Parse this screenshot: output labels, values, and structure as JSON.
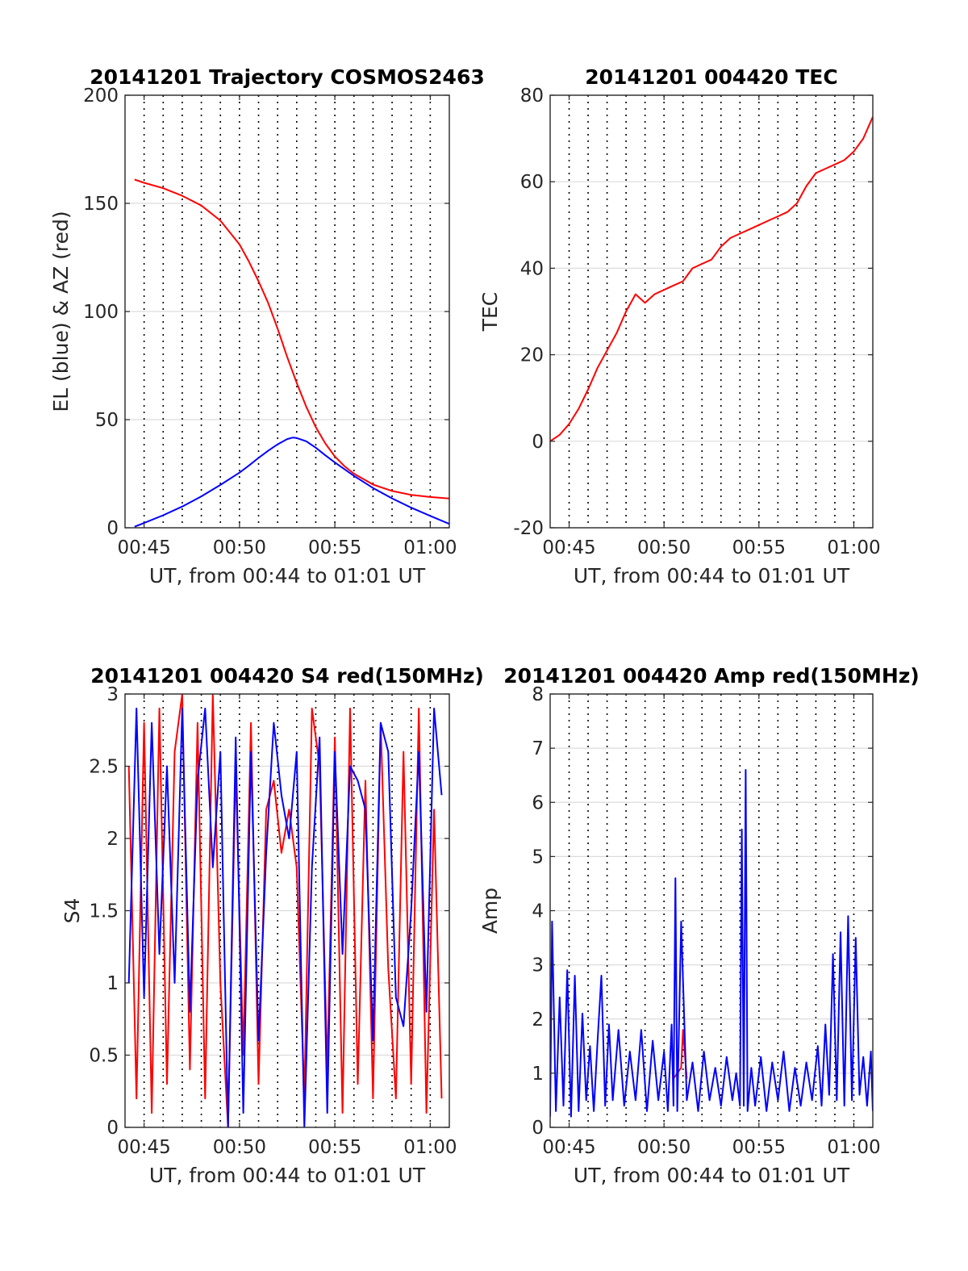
{
  "figure": {
    "background": "#ffffff"
  },
  "chart_data": [
    {
      "id": "trajectory",
      "type": "line",
      "title": "20141201 Trajectory COSMOS2463",
      "xlabel": "UT, from 00:44 to 01:01 UT",
      "ylabel": "EL (blue) & AZ (red)",
      "xlim": [
        "00:44",
        "01:01"
      ],
      "ylim": [
        0,
        200
      ],
      "yticks": [
        0,
        50,
        100,
        150,
        200
      ],
      "xticks": [
        "00:45",
        "00:50",
        "00:55",
        "01:00"
      ],
      "vgrid_dotted": true,
      "hgrid": true,
      "series": [
        {
          "color": "#ff0000",
          "x": [
            "00:44.5",
            "00:45",
            "00:46",
            "00:47",
            "00:48",
            "00:49",
            "00:50",
            "00:50.5",
            "00:51",
            "00:51.5",
            "00:52",
            "00:52.5",
            "00:53",
            "00:53.5",
            "00:54",
            "00:54.5",
            "00:55",
            "00:55.5",
            "00:56",
            "00:57",
            "00:58",
            "00:59",
            "01:00",
            "01:01"
          ],
          "values": [
            161,
            159.5,
            157,
            153.5,
            149,
            142,
            131,
            123,
            114,
            104,
            92,
            79,
            67,
            56,
            46.5,
            39,
            33,
            28.5,
            25,
            20,
            17,
            15.2,
            14.2,
            13.5
          ]
        },
        {
          "color": "#0000ff",
          "x": [
            "00:44.5",
            "00:45",
            "00:46",
            "00:47",
            "00:48",
            "00:49",
            "00:50",
            "00:50.5",
            "00:51",
            "00:51.5",
            "00:52",
            "00:52.5",
            "00:52.8",
            "00:53",
            "00:53.5",
            "00:54",
            "00:54.5",
            "00:55",
            "00:56",
            "00:57",
            "00:58",
            "00:59",
            "01:00",
            "01:01"
          ],
          "values": [
            0.5,
            2.2,
            5.8,
            9.8,
            14.5,
            19.8,
            25.5,
            28.8,
            32.3,
            35.6,
            38.6,
            41,
            41.7,
            41.5,
            40,
            37,
            33.5,
            30.2,
            24,
            18.4,
            13.6,
            9.3,
            5.5,
            1.8
          ]
        }
      ]
    },
    {
      "id": "tec",
      "type": "line",
      "title": "20141201 004420 TEC",
      "xlabel": "UT, from 00:44 to 01:01 UT",
      "ylabel": "TEC",
      "xlim": [
        "00:44",
        "01:01"
      ],
      "ylim": [
        -20,
        80
      ],
      "yticks": [
        -20,
        0,
        20,
        40,
        60,
        80
      ],
      "xticks": [
        "00:45",
        "00:50",
        "00:55",
        "01:00"
      ],
      "vgrid_dotted": true,
      "hgrid": true,
      "series": [
        {
          "color": "#ff0000",
          "x": [
            "00:44",
            "00:44.5",
            "00:45",
            "00:45.5",
            "00:46",
            "00:46.5",
            "00:47",
            "00:47.5",
            "00:48",
            "00:48.5",
            "00:49",
            "00:49.5",
            "00:50",
            "00:50.5",
            "00:51",
            "00:51.5",
            "00:52",
            "00:52.5",
            "00:53",
            "00:53.5",
            "00:54",
            "00:54.5",
            "00:55",
            "00:55.5",
            "00:56",
            "00:56.5",
            "00:57",
            "00:57.5",
            "00:58",
            "00:58.5",
            "00:59",
            "00:59.5",
            "01:00",
            "01:00.5",
            "01:01"
          ],
          "values": [
            0,
            1.5,
            4,
            7.5,
            12,
            17,
            21,
            25,
            30,
            34,
            32,
            34,
            35,
            36,
            37,
            40,
            41,
            42,
            45,
            47,
            48,
            49,
            50,
            51,
            52,
            53,
            55,
            59,
            62,
            63,
            64,
            65,
            67,
            70,
            75
          ]
        }
      ]
    },
    {
      "id": "s4",
      "type": "line",
      "title": "20141201 004420 S4 red(150MHz)",
      "xlabel": "UT, from 00:44 to 01:01 UT",
      "ylabel": "S4",
      "xlim": [
        "00:44",
        "01:01"
      ],
      "ylim": [
        0,
        3
      ],
      "yticks": [
        0,
        0.5,
        1,
        1.5,
        2,
        2.5,
        3
      ],
      "xticks": [
        "00:45",
        "00:50",
        "00:55",
        "01:00"
      ],
      "vgrid_dotted": true,
      "hgrid": true,
      "series": [
        {
          "color": "#ff0000",
          "x": [
            "00:44.2",
            "00:44.6",
            "00:45",
            "00:45.4",
            "00:45.8",
            "00:46.2",
            "00:46.6",
            "00:47",
            "00:47.4",
            "00:47.8",
            "00:48.2",
            "00:48.6",
            "00:49",
            "00:49.4",
            "00:49.8",
            "00:50.2",
            "00:50.6",
            "00:51",
            "00:51.4",
            "00:51.8",
            "00:52.2",
            "00:52.6",
            "00:53",
            "00:53.4",
            "00:53.8",
            "00:54.2",
            "00:54.6",
            "00:55",
            "00:55.4",
            "00:55.8",
            "00:56.2",
            "00:56.6",
            "00:57",
            "00:57.4",
            "00:57.8",
            "00:58.2",
            "00:58.6",
            "00:59",
            "00:59.4",
            "00:59.8",
            "01:00.2",
            "01:00.6"
          ],
          "values": [
            2.5,
            0.2,
            2.8,
            0.1,
            2.9,
            0.3,
            2.6,
            3,
            0.4,
            2.8,
            0.2,
            3,
            1,
            0,
            2.5,
            0.5,
            2.8,
            0.3,
            2.2,
            2.4,
            1.9,
            2.2,
            1.8,
            0.2,
            2.9,
            2.5,
            0.4,
            2.7,
            0.1,
            2.9,
            0.3,
            2.4,
            0.2,
            2.8,
            1.1,
            0.2,
            2.6,
            0.3,
            2.9,
            0.1,
            2.2,
            0.2
          ]
        },
        {
          "color": "#0000ff",
          "x": [
            "00:44.2",
            "00:44.6",
            "00:45",
            "00:45.4",
            "00:45.8",
            "00:46.2",
            "00:46.6",
            "00:47",
            "00:47.4",
            "00:47.8",
            "00:48.2",
            "00:48.6",
            "00:49",
            "00:49.4",
            "00:49.8",
            "00:50.2",
            "00:50.6",
            "00:51",
            "00:51.4",
            "00:51.8",
            "00:52.2",
            "00:52.6",
            "00:53",
            "00:53.4",
            "00:53.8",
            "00:54.2",
            "00:54.6",
            "00:55",
            "00:55.4",
            "00:55.8",
            "00:56.2",
            "00:56.6",
            "00:57",
            "00:57.4",
            "00:57.8",
            "00:58.2",
            "00:58.6",
            "00:59",
            "00:59.4",
            "00:59.8",
            "01:00.2",
            "01:00.6"
          ],
          "values": [
            1,
            2.9,
            0.9,
            2.8,
            1.2,
            2.5,
            1,
            2.9,
            0.8,
            2.4,
            2.9,
            1.8,
            2.6,
            0,
            2.7,
            0.1,
            2.6,
            0.6,
            1.9,
            2.8,
            2.3,
            2,
            2.6,
            0,
            1.8,
            2.7,
            0.1,
            2.6,
            1.2,
            2.5,
            2.4,
            2.2,
            0.6,
            2.8,
            2.6,
            0.9,
            0.7,
            1.5,
            2.6,
            0.8,
            2.9,
            2.3
          ]
        }
      ]
    },
    {
      "id": "amp",
      "type": "line",
      "title": "20141201 004420 Amp red(150MHz)",
      "xlabel": "UT, from 00:44 to 01:01 UT",
      "ylabel": "Amp",
      "xlim": [
        "00:44",
        "01:01"
      ],
      "ylim": [
        0,
        8
      ],
      "yticks": [
        0,
        1,
        2,
        3,
        4,
        5,
        6,
        7,
        8
      ],
      "xticks": [
        "00:45",
        "00:50",
        "00:55",
        "01:00"
      ],
      "vgrid_dotted": true,
      "hgrid": true,
      "series": [
        {
          "color": "#ff0000",
          "x": [
            "00:50.5",
            "00:50.9",
            "00:51",
            "00:51.2"
          ],
          "values": [
            0.9,
            1.1,
            1.8,
            0.9
          ]
        },
        {
          "color": "#0000ff",
          "x": [
            "00:44",
            "00:44.1",
            "00:44.3",
            "00:44.5",
            "00:44.7",
            "00:44.9",
            "00:45.1",
            "00:45.3",
            "00:45.5",
            "00:45.7",
            "00:45.9",
            "00:46.1",
            "00:46.3",
            "00:46.5",
            "00:46.7",
            "00:46.9",
            "00:47.1",
            "00:47.3",
            "00:47.6",
            "00:47.9",
            "00:48.2",
            "00:48.5",
            "00:48.8",
            "00:49.1",
            "00:49.4",
            "00:49.7",
            "00:50",
            "00:50.2",
            "00:50.4",
            "00:50.5",
            "00:50.6",
            "00:50.7",
            "00:50.9",
            "00:51.2",
            "00:51.5",
            "00:51.8",
            "00:52.1",
            "00:52.4",
            "00:52.7",
            "00:53",
            "00:53.3",
            "00:53.6",
            "00:53.8",
            "00:54",
            "00:54.1",
            "00:54.2",
            "00:54.3",
            "00:54.4",
            "00:54.6",
            "00:54.8",
            "00:55.1",
            "00:55.4",
            "00:55.7",
            "00:56",
            "00:56.3",
            "00:56.6",
            "00:56.9",
            "00:57.2",
            "00:57.5",
            "00:57.8",
            "00:58.1",
            "00:58.3",
            "00:58.5",
            "00:58.7",
            "00:58.9",
            "00:59.1",
            "00:59.3",
            "00:59.5",
            "00:59.7",
            "00:59.9",
            "01:00.1",
            "01:00.3",
            "01:00.5",
            "01:00.7",
            "01:00.9",
            "01:01"
          ],
          "values": [
            0.2,
            3.8,
            0.3,
            2.4,
            0.4,
            2.9,
            0.2,
            2.8,
            0.3,
            2.1,
            0.5,
            1.5,
            0.3,
            1.6,
            2.8,
            0.4,
            1.9,
            0.5,
            1.8,
            0.4,
            1.4,
            0.5,
            1.8,
            0.3,
            1.6,
            0.5,
            1.4,
            0.3,
            1.9,
            0.4,
            4.6,
            0.3,
            3.8,
            0.5,
            1.2,
            0.3,
            1.4,
            0.5,
            1.1,
            0.4,
            1.3,
            0.5,
            1.0,
            0.4,
            5.5,
            0.4,
            6.6,
            0.3,
            1.1,
            0.4,
            1.3,
            0.3,
            1.2,
            0.5,
            1.4,
            0.3,
            1.1,
            0.4,
            1.2,
            0.5,
            1.5,
            0.4,
            1.9,
            0.6,
            3.2,
            0.5,
            3.6,
            0.4,
            3.9,
            0.5,
            3.5,
            0.6,
            1.3,
            0.4,
            1.4,
            0.3
          ]
        }
      ]
    }
  ]
}
